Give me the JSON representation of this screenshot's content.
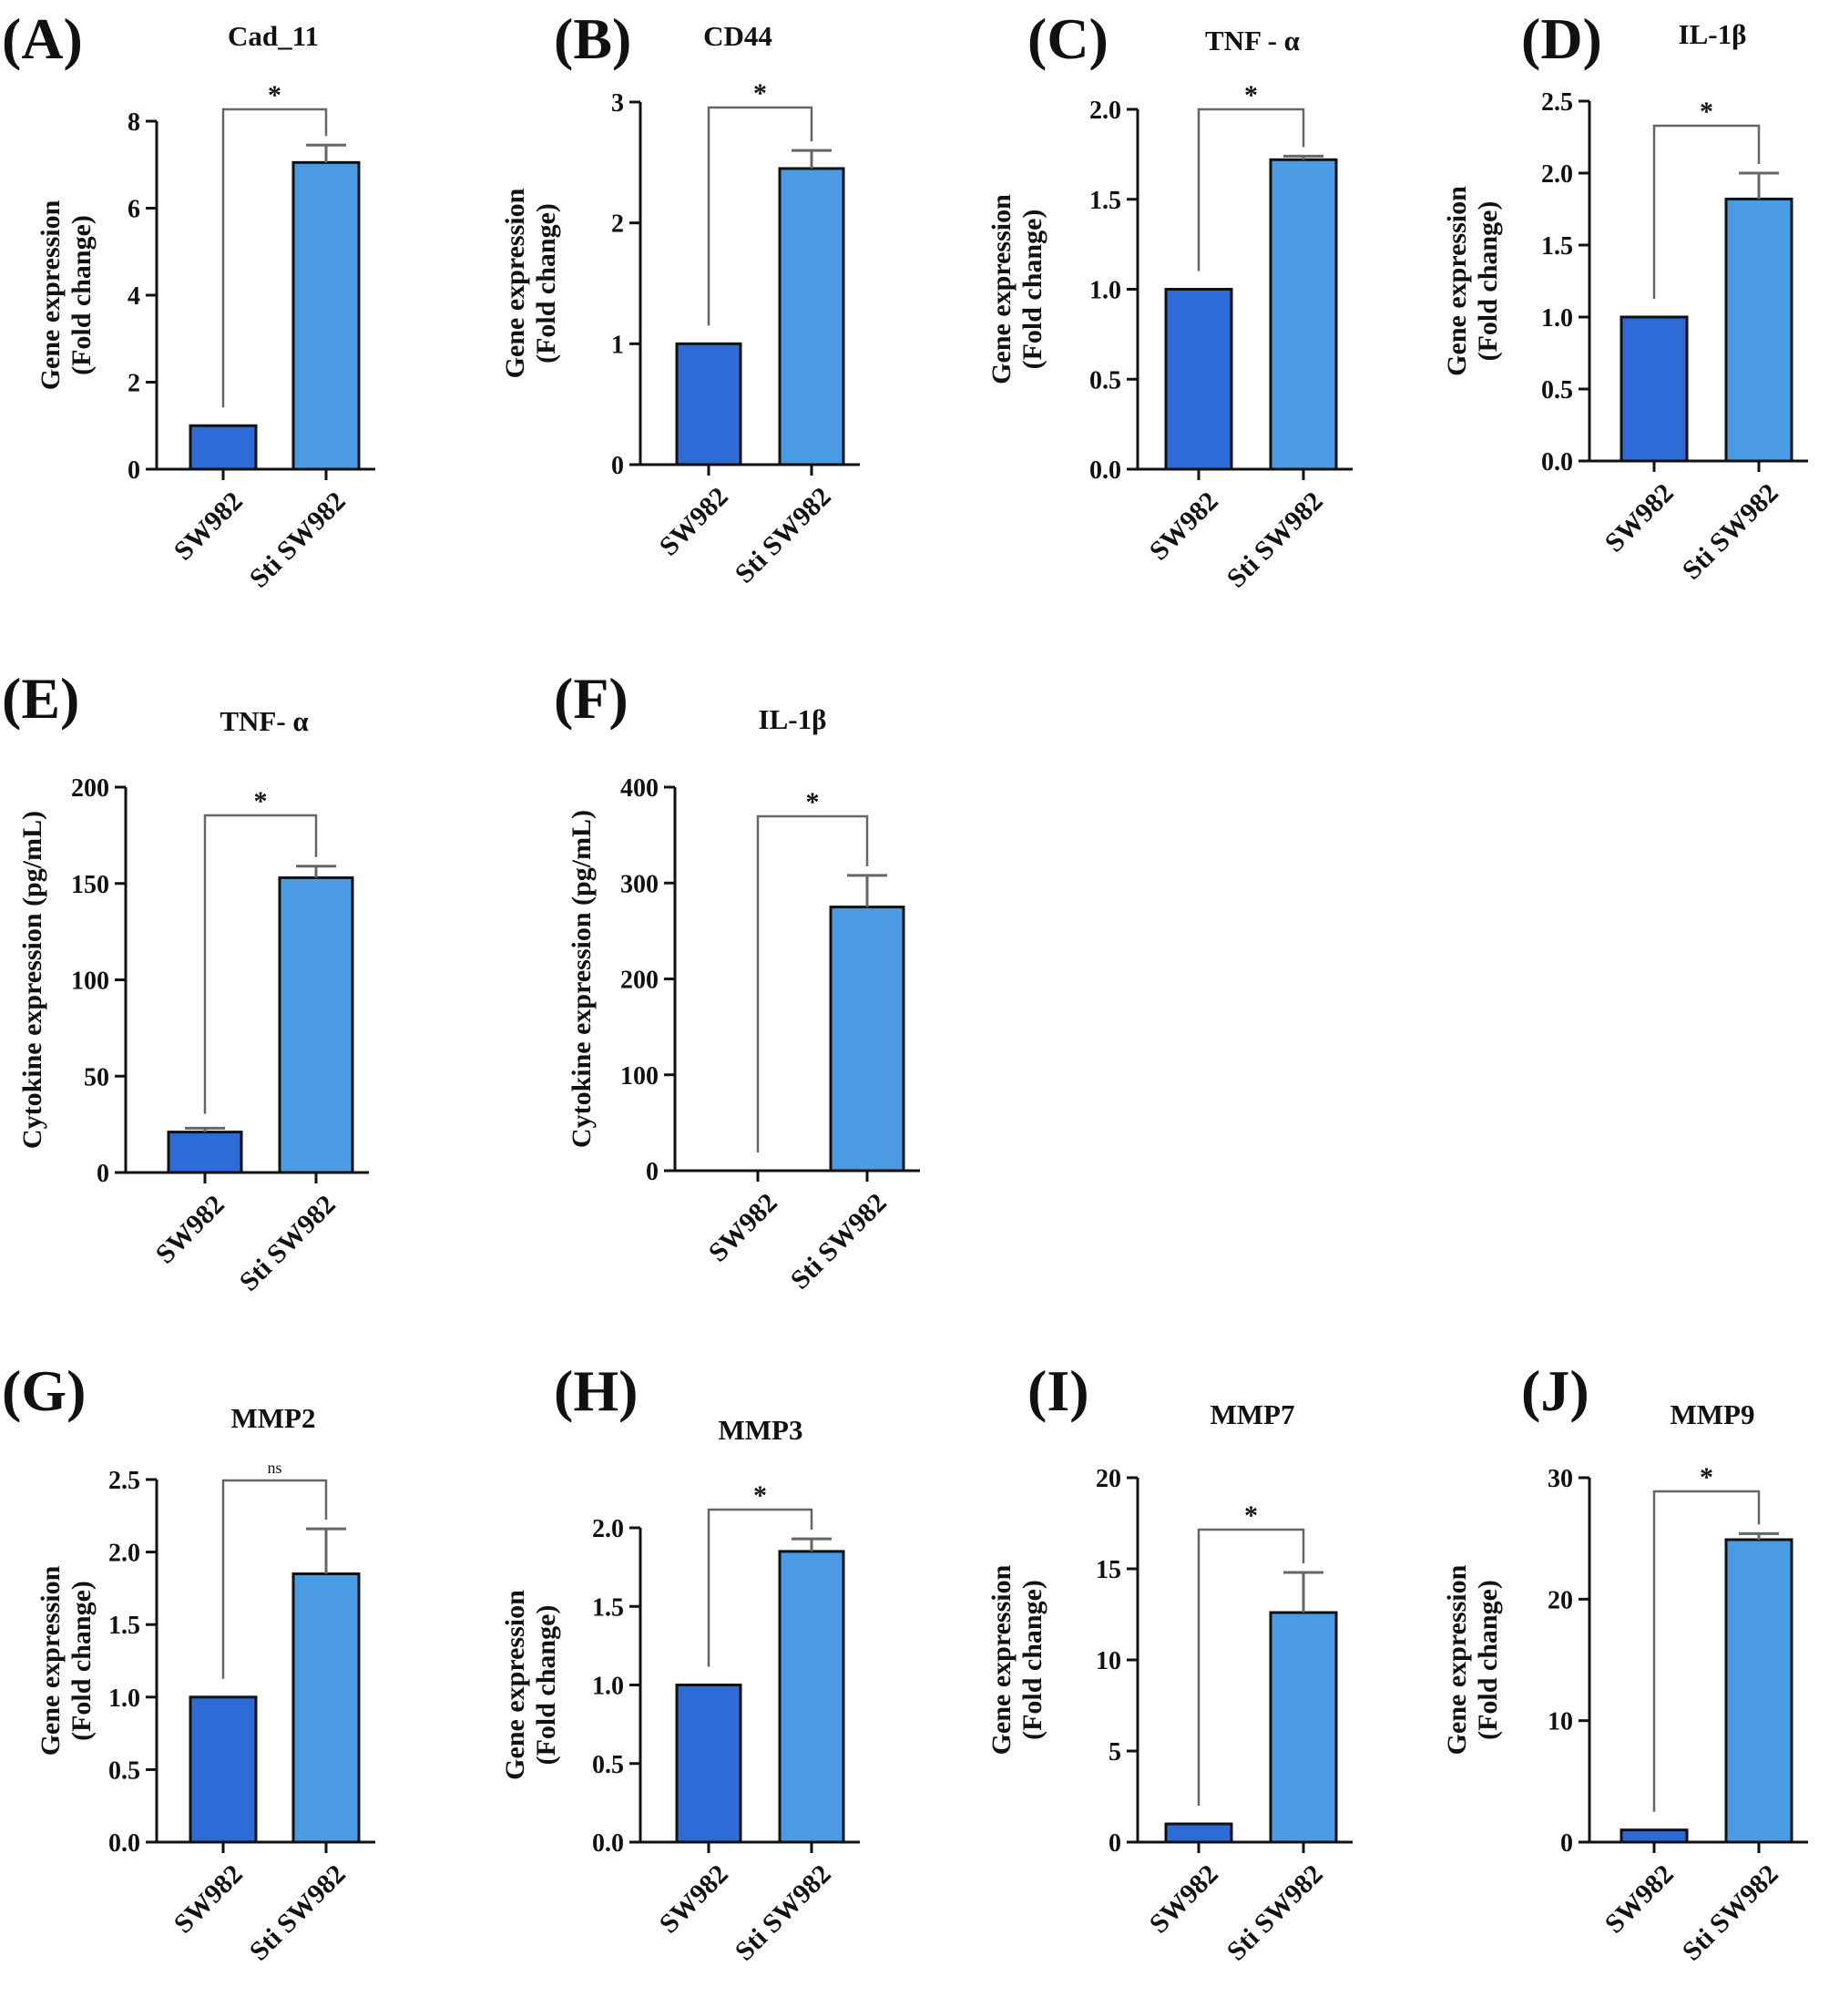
{
  "colors": {
    "bar_control": "#2e6bd6",
    "bar_treated": "#4a9be3",
    "stroke": "#111111"
  },
  "chart_data": [
    {
      "panel": "(A)",
      "title": "Cad_11",
      "type": "bar",
      "categories": [
        "SW982",
        "Sti SW982"
      ],
      "values": [
        1.0,
        7.05
      ],
      "errors": [
        0,
        0.4
      ],
      "ylim": [
        0,
        8
      ],
      "yticks": [
        "0",
        "2",
        "4",
        "6",
        "8"
      ],
      "ylabel": [
        "Gene expression",
        "(Fold change)"
      ],
      "significance": "*"
    },
    {
      "panel": "(B)",
      "title": "CD44",
      "type": "bar",
      "categories": [
        "SW982",
        "Sti SW982"
      ],
      "values": [
        1.0,
        2.45
      ],
      "errors": [
        0,
        0.15
      ],
      "ylim": [
        0,
        3
      ],
      "yticks": [
        "0",
        "1",
        "2",
        "3"
      ],
      "ylabel": [
        "Gene expression",
        "(Fold change)"
      ],
      "significance": "*"
    },
    {
      "panel": "(C)",
      "title": "TNF - α",
      "type": "bar",
      "categories": [
        "SW982",
        "Sti SW982"
      ],
      "values": [
        1.0,
        1.72
      ],
      "errors": [
        0,
        0.02
      ],
      "ylim": [
        0,
        2
      ],
      "yticks": [
        "0.0",
        "0.5",
        "1.0",
        "1.5",
        "2.0"
      ],
      "ylabel": [
        "Gene expression",
        "(Fold change)"
      ],
      "significance": "*"
    },
    {
      "panel": "(D)",
      "title": "IL-1β",
      "type": "bar",
      "categories": [
        "SW982",
        "Sti SW982"
      ],
      "values": [
        1.0,
        1.82
      ],
      "errors": [
        0,
        0.18
      ],
      "ylim": [
        0,
        2.5
      ],
      "yticks": [
        "0.0",
        "0.5",
        "1.0",
        "1.5",
        "2.0",
        "2.5"
      ],
      "ylabel": [
        "Gene expression",
        "(Fold change)"
      ],
      "significance": "*"
    },
    {
      "panel": "(E)",
      "title": "TNF- α",
      "type": "bar",
      "categories": [
        "SW982",
        "Sti SW982"
      ],
      "values": [
        21,
        153
      ],
      "errors": [
        2,
        6
      ],
      "ylim": [
        0,
        200
      ],
      "yticks": [
        "0",
        "50",
        "100",
        "150",
        "200"
      ],
      "ylabel": [
        "Cytokine expression (pg/mL)"
      ],
      "significance": "*"
    },
    {
      "panel": "(F)",
      "title": "IL-1β",
      "type": "bar",
      "categories": [
        "SW982",
        "Sti SW982"
      ],
      "values": [
        0,
        275
      ],
      "errors": [
        0,
        33
      ],
      "ylim": [
        0,
        400
      ],
      "yticks": [
        "0",
        "100",
        "200",
        "300",
        "400"
      ],
      "ylabel": [
        "Cytokine expression (pg/mL)"
      ],
      "significance": "*"
    },
    {
      "panel": "(G)",
      "title": "MMP2",
      "type": "bar",
      "categories": [
        "SW982",
        "Sti SW982"
      ],
      "values": [
        1.0,
        1.85
      ],
      "errors": [
        0,
        0.31
      ],
      "ylim": [
        0,
        2.5
      ],
      "yticks": [
        "0.0",
        "0.5",
        "1.0",
        "1.5",
        "2.0",
        "2.5"
      ],
      "ylabel": [
        "Gene expression",
        "(Fold change)"
      ],
      "significance": "ns"
    },
    {
      "panel": "(H)",
      "title": "MMP3",
      "type": "bar",
      "categories": [
        "SW982",
        "Sti SW982"
      ],
      "values": [
        1.0,
        1.85
      ],
      "errors": [
        0,
        0.08
      ],
      "ylim": [
        0,
        2
      ],
      "yticks": [
        "0.0",
        "0.5",
        "1.0",
        "1.5",
        "2.0"
      ],
      "ylabel": [
        "Gene expression",
        "(Fold change)"
      ],
      "significance": "*"
    },
    {
      "panel": "(I)",
      "title": "MMP7",
      "type": "bar",
      "categories": [
        "SW982",
        "Sti SW982"
      ],
      "values": [
        1.0,
        12.6
      ],
      "errors": [
        0,
        2.2
      ],
      "ylim": [
        0,
        20
      ],
      "yticks": [
        "0",
        "5",
        "10",
        "15",
        "20"
      ],
      "ylabel": [
        "Gene expression",
        "(Fold change)"
      ],
      "significance": "*"
    },
    {
      "panel": "(J)",
      "title": "MMP9",
      "type": "bar",
      "categories": [
        "SW982",
        "Sti SW982"
      ],
      "values": [
        1.0,
        24.9
      ],
      "errors": [
        0,
        0.5
      ],
      "ylim": [
        0,
        30
      ],
      "yticks": [
        "0",
        "10",
        "20",
        "30"
      ],
      "ylabel": [
        "Gene expression",
        "(Fold change)"
      ],
      "significance": "*"
    }
  ]
}
